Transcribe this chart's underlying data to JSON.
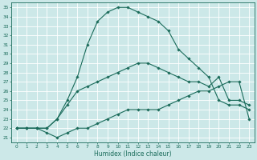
{
  "title": "",
  "xlabel": "Humidex (Indice chaleur)",
  "bg_color": "#cce8e8",
  "line_color": "#1a6b5a",
  "grid_color": "#ffffff",
  "xlim": [
    -0.5,
    23.5
  ],
  "ylim": [
    20.5,
    35.5
  ],
  "xticks": [
    0,
    1,
    2,
    3,
    4,
    5,
    6,
    7,
    8,
    9,
    10,
    11,
    12,
    13,
    14,
    15,
    16,
    17,
    18,
    19,
    20,
    21,
    22,
    23
  ],
  "yticks": [
    21,
    22,
    23,
    24,
    25,
    26,
    27,
    28,
    29,
    30,
    31,
    32,
    33,
    34,
    35
  ],
  "line1_x": [
    0,
    1,
    2,
    3,
    4,
    5,
    6,
    7,
    8,
    9,
    10,
    11,
    12,
    13,
    14,
    15,
    16,
    17,
    18,
    19,
    20,
    21,
    22,
    23
  ],
  "line1_y": [
    22.0,
    22.0,
    22.0,
    21.5,
    21.0,
    21.5,
    22.0,
    22.0,
    22.5,
    23.0,
    23.5,
    24.0,
    24.0,
    24.0,
    24.0,
    24.5,
    25.0,
    25.5,
    26.0,
    26.0,
    26.5,
    27.0,
    27.0,
    23.0
  ],
  "line2_x": [
    0,
    1,
    2,
    3,
    4,
    5,
    6,
    7,
    8,
    9,
    10,
    11,
    12,
    13,
    14,
    15,
    16,
    17,
    18,
    19,
    20,
    21,
    22,
    23
  ],
  "line2_y": [
    22.0,
    22.0,
    22.0,
    22.0,
    23.0,
    24.5,
    26.0,
    26.5,
    27.0,
    27.5,
    28.0,
    28.5,
    29.0,
    29.0,
    28.5,
    28.0,
    27.5,
    27.0,
    27.0,
    26.5,
    27.5,
    25.0,
    25.0,
    24.5
  ],
  "line3_x": [
    0,
    1,
    2,
    3,
    4,
    5,
    6,
    7,
    8,
    9,
    10,
    11,
    12,
    13,
    14,
    15,
    16,
    17,
    18,
    19,
    20,
    21,
    22,
    23
  ],
  "line3_y": [
    22.0,
    22.0,
    22.0,
    22.0,
    23.0,
    25.0,
    27.5,
    31.0,
    33.5,
    34.5,
    35.0,
    35.0,
    34.5,
    34.0,
    33.5,
    32.5,
    30.5,
    29.5,
    28.5,
    27.5,
    25.0,
    24.5,
    24.5,
    24.0
  ],
  "marker": "D",
  "markersize": 1.8,
  "linewidth": 0.8,
  "xlabel_fontsize": 5.5,
  "tick_fontsize": 4.2
}
